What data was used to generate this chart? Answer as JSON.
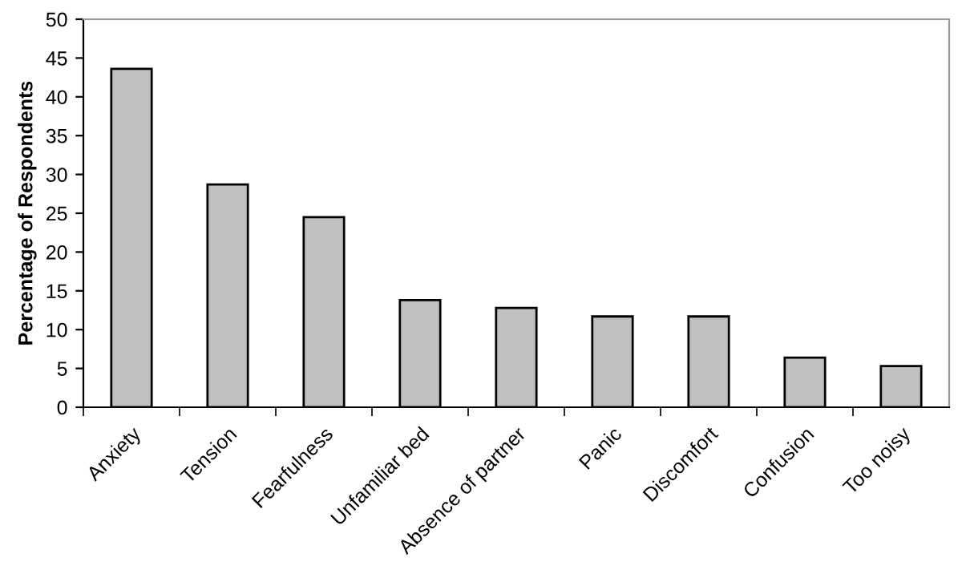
{
  "chart_data": {
    "type": "bar",
    "ylabel": "Percentage of Respondents",
    "categories": [
      "Anxiety",
      "Tension",
      "Fearfulness",
      "Unfamiliar bed",
      "Absence of partner",
      "Panic",
      "Discomfort",
      "Confusion",
      "Too noisy"
    ],
    "values": [
      43.6,
      28.7,
      24.5,
      13.8,
      12.8,
      11.7,
      11.7,
      6.4,
      5.3
    ],
    "color": "#c0c0c0",
    "ylim": [
      0,
      50
    ],
    "yticks": [
      0,
      5,
      10,
      15,
      20,
      25,
      30,
      35,
      40,
      45,
      50
    ],
    "grid": false
  }
}
